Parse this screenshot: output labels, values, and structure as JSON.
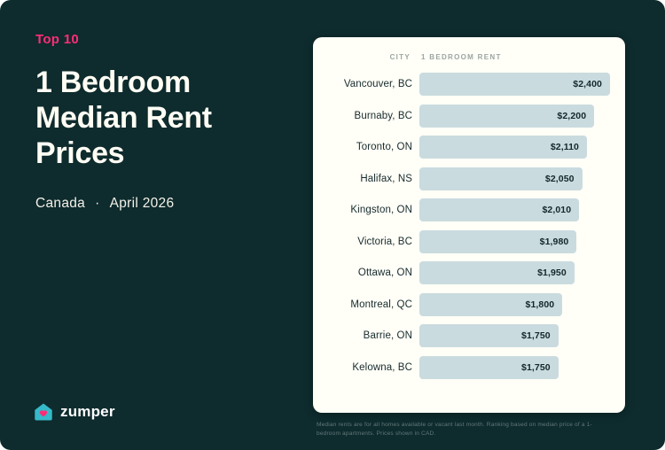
{
  "page": {
    "bg_color": "#0E2B2D",
    "accent_pink": "#FF2D78",
    "card_color": "#FFFEF7"
  },
  "header": {
    "eyebrow": "Top 10",
    "title": "1 Bedroom Median Rent Prices",
    "subtitle_left": "Canada",
    "subtitle_sep": "·",
    "subtitle_right": "April 2026"
  },
  "logo": {
    "brand": "zumper",
    "house_color": "#35BAC9",
    "heart_color": "#FF2D78"
  },
  "chart_data": {
    "type": "bar",
    "orientation": "horizontal",
    "title": "Top 10 — 1 Bedroom Median Rent Prices, Canada, April 2026",
    "columns": [
      "City",
      "1 Bedroom Rent"
    ],
    "categories": [
      "Vancouver, BC",
      "Burnaby, BC",
      "Toronto, ON",
      "Halifax, NS",
      "Kingston, ON",
      "Victoria, BC",
      "Ottawa, ON",
      "Montreal, QC",
      "Barrie, ON",
      "Kelowna, BC"
    ],
    "values": [
      2400,
      2200,
      2110,
      2050,
      2010,
      1980,
      1950,
      1800,
      1750,
      1750
    ],
    "value_labels": [
      "$2,400",
      "$2,200",
      "$2,110",
      "$2,050",
      "$2,010",
      "$1,980",
      "$1,950",
      "$1,800",
      "$1,750",
      "$1,750"
    ],
    "max_value": 2400,
    "bar_color": "#C9DBDF",
    "legend": "none",
    "grid": false
  },
  "footnote": "Median rents are for all homes available or vacant last month. Ranking based on median price of a 1-bedroom apartments. Prices shown in CAD."
}
